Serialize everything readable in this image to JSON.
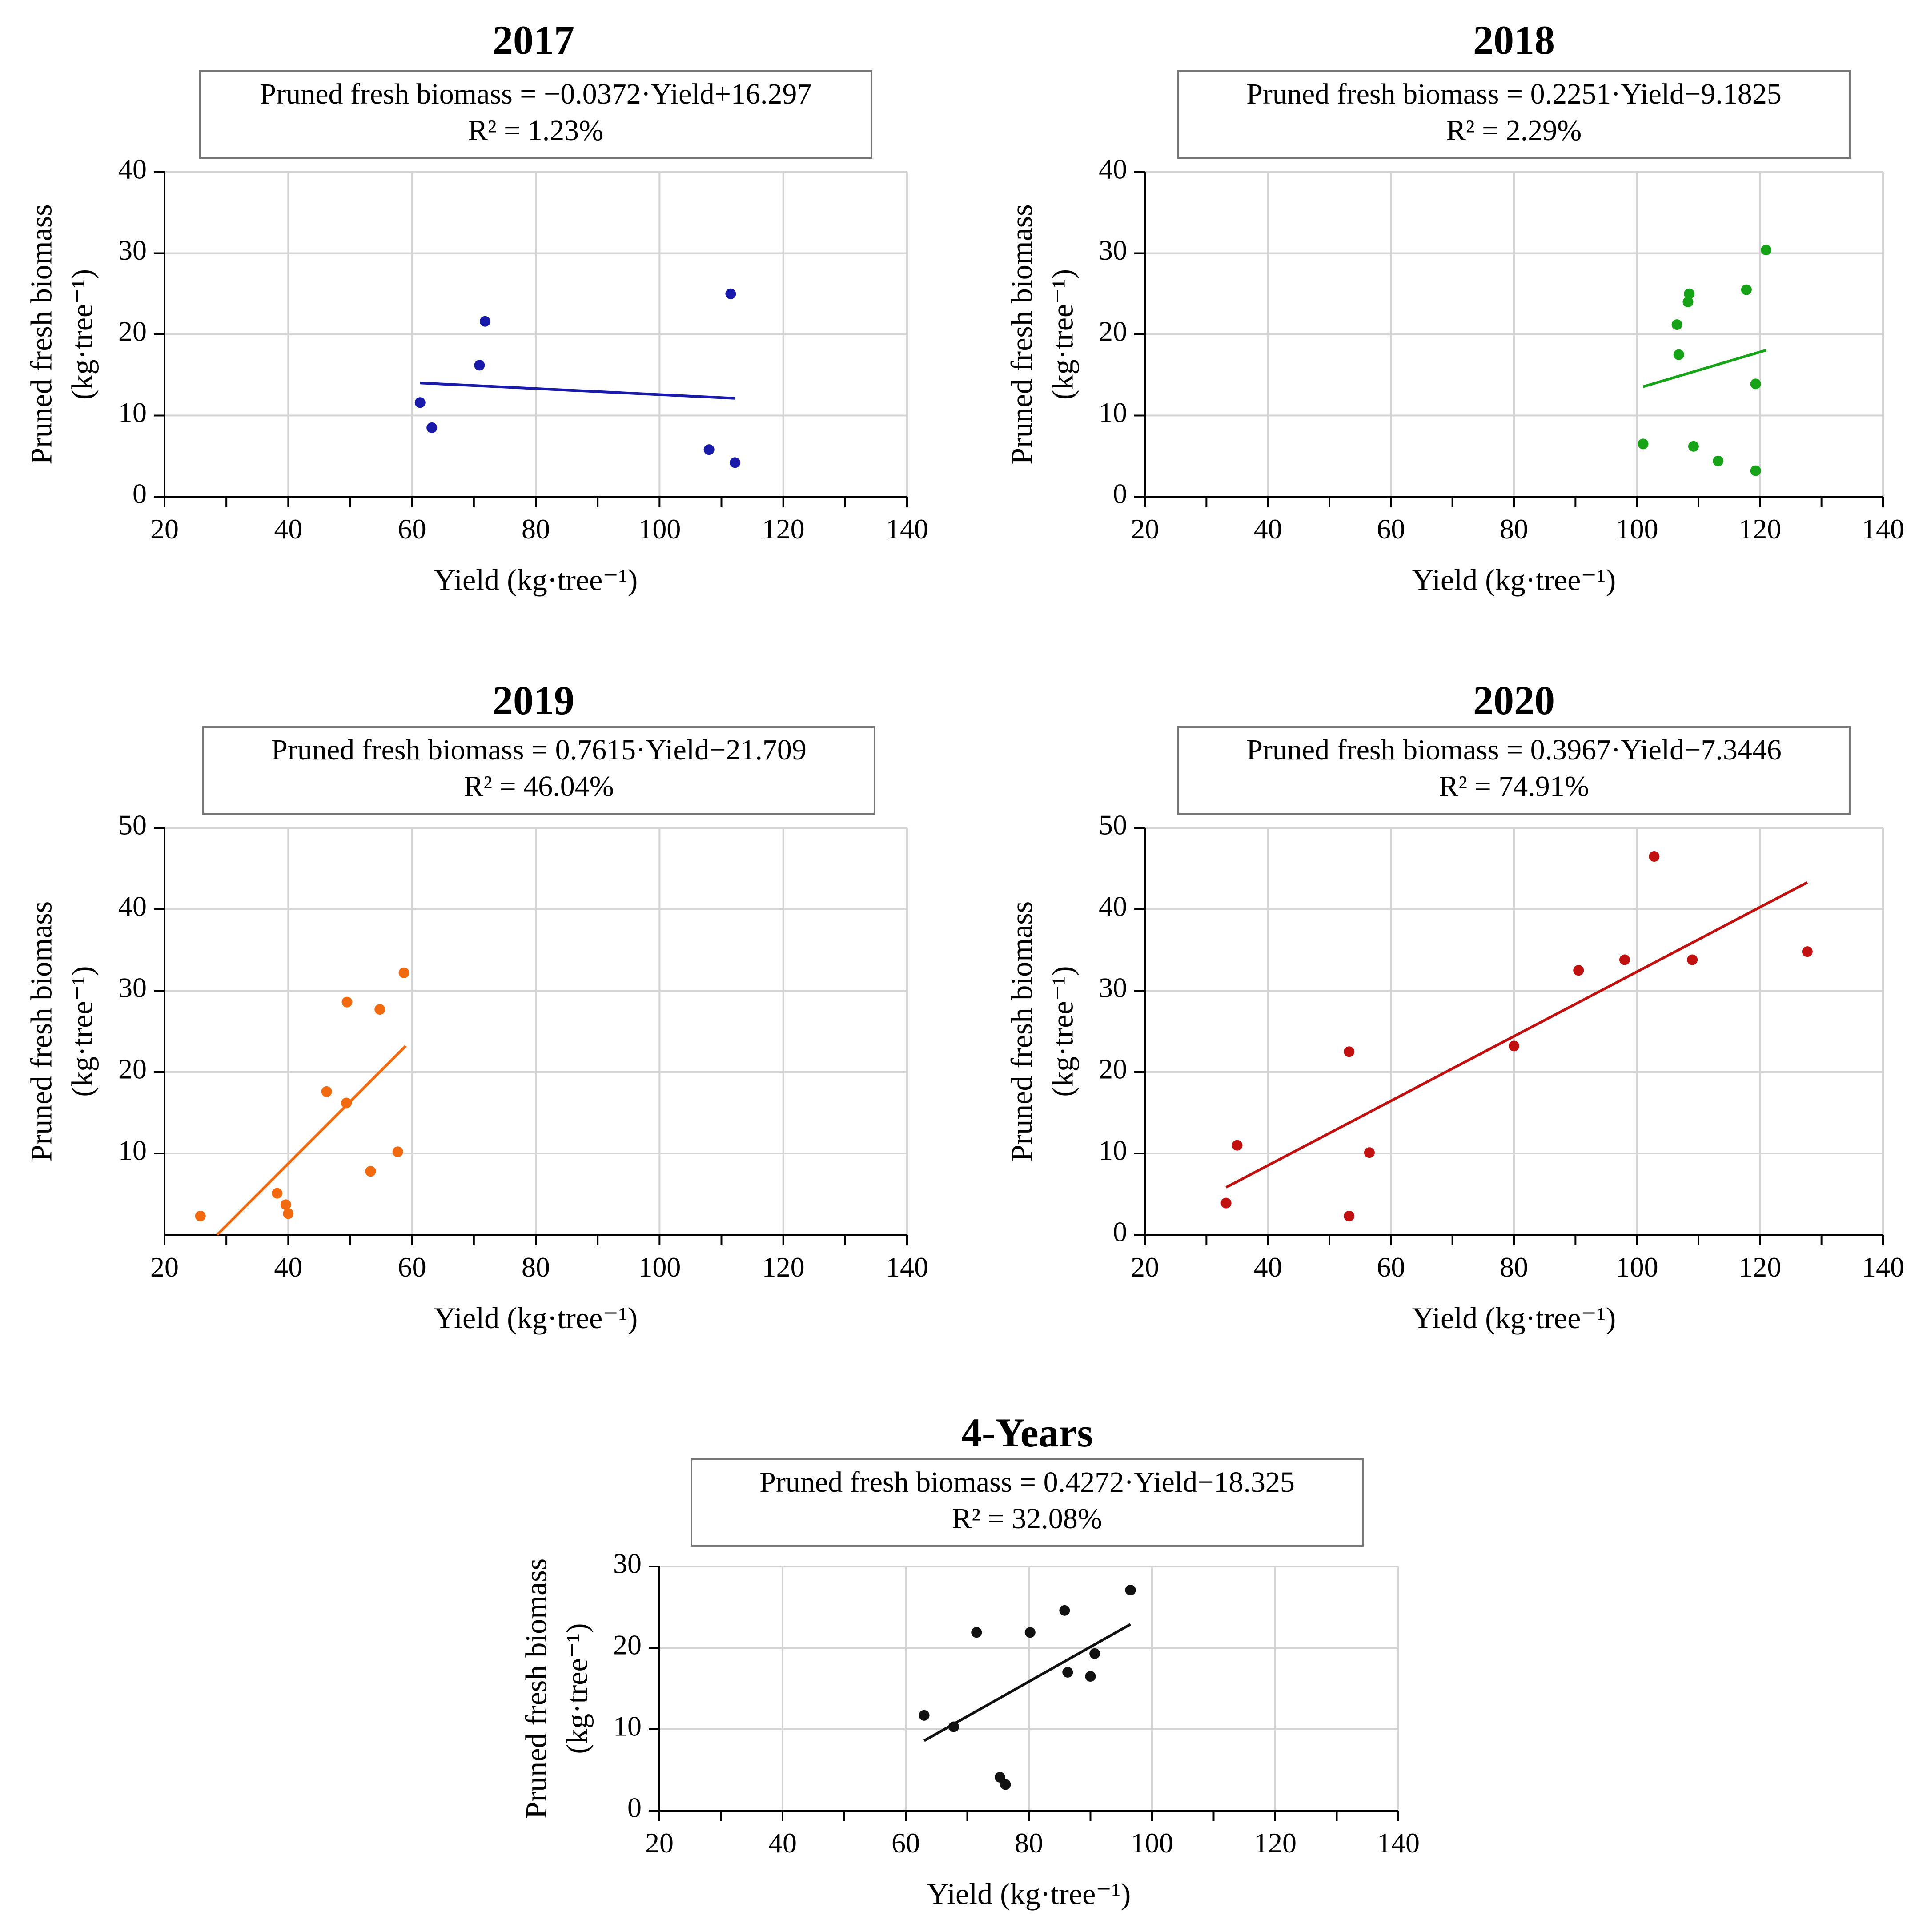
{
  "chart_data": [
    {
      "type": "scatter",
      "title": "2017",
      "equation": "Pruned fresh biomass = −0.0372·Yield+16.297",
      "r_squared": "R² = 1.23%",
      "xlabel": "Yield (kg·tree⁻¹)",
      "ylabel_line1": "Pruned fresh biomass",
      "ylabel_line2": "(kg·tree⁻¹)",
      "xlim": [
        20,
        140
      ],
      "ylim": [
        0,
        40
      ],
      "xticks": [
        20,
        40,
        60,
        80,
        100,
        120,
        140
      ],
      "yticks": [
        0,
        10,
        20,
        30,
        40
      ],
      "color": "#1a1aaa",
      "x": [
        61.3,
        63.2,
        70.9,
        71.8,
        108,
        111.5,
        112.2
      ],
      "y": [
        11.6,
        8.5,
        16.2,
        21.6,
        5.8,
        25,
        4.2
      ],
      "fit": {
        "slope": -0.0372,
        "intercept": 16.297,
        "x_range": [
          61.3,
          112.2
        ]
      }
    },
    {
      "type": "scatter",
      "title": "2018",
      "equation": "Pruned fresh biomass = 0.2251·Yield−9.1825",
      "r_squared": "R² = 2.29%",
      "xlabel": "Yield (kg·tree⁻¹)",
      "ylabel_line1": "Pruned fresh biomass",
      "ylabel_line2": "(kg·tree⁻¹)",
      "xlim": [
        20,
        140
      ],
      "ylim": [
        0,
        40
      ],
      "xticks": [
        20,
        40,
        60,
        80,
        100,
        120,
        140
      ],
      "yticks": [
        0,
        10,
        20,
        30,
        40
      ],
      "color": "#17a317",
      "x": [
        101,
        106.5,
        106.8,
        108.3,
        108.5,
        109.2,
        113.2,
        117.8,
        119.3,
        119.3,
        121
      ],
      "y": [
        6.5,
        21.2,
        17.5,
        24,
        25,
        6.2,
        4.4,
        25.5,
        13.9,
        3.2,
        30.4
      ],
      "fit": {
        "slope": 0.2251,
        "intercept": -9.1825,
        "x_range": [
          101,
          121
        ]
      }
    },
    {
      "type": "scatter",
      "title": "2019",
      "equation": "Pruned fresh biomass = 0.7615·Yield−21.709",
      "r_squared": "R² = 46.04%",
      "xlabel": "Yield (kg·tree⁻¹)",
      "ylabel_line1": "Pruned fresh biomass",
      "ylabel_line2": "(kg·tree⁻¹)",
      "xlim": [
        20,
        140
      ],
      "ylim": [
        0,
        50
      ],
      "xticks": [
        20,
        40,
        60,
        80,
        100,
        120,
        140
      ],
      "yticks": [
        10,
        20,
        30,
        40,
        50
      ],
      "color": "#f26a10",
      "x": [
        25.8,
        38.2,
        39.6,
        40,
        46.2,
        49.4,
        49.5,
        53.3,
        54.8,
        57.7,
        58.7
      ],
      "y": [
        2.3,
        5.1,
        3.7,
        2.6,
        17.6,
        16.2,
        28.6,
        7.8,
        27.7,
        10.2,
        32.2
      ],
      "fit": {
        "slope": 0.7615,
        "intercept": -21.709,
        "x_range": [
          28.5,
          59
        ]
      }
    },
    {
      "type": "scatter",
      "title": "2020",
      "equation": "Pruned fresh biomass = 0.3967·Yield−7.3446",
      "r_squared": "R² = 74.91%",
      "xlabel": "Yield (kg·tree⁻¹)",
      "ylabel_line1": "Pruned fresh biomass",
      "ylabel_line2": "(kg·tree⁻¹)",
      "xlim": [
        20,
        140
      ],
      "ylim": [
        0,
        50
      ],
      "xticks": [
        20,
        40,
        60,
        80,
        100,
        120,
        140
      ],
      "yticks": [
        0,
        10,
        20,
        30,
        40,
        50
      ],
      "color": "#c01010",
      "x": [
        33.2,
        35,
        53.2,
        53.2,
        56.5,
        80,
        90.5,
        98,
        102.8,
        109,
        127.7
      ],
      "y": [
        3.9,
        11,
        22.5,
        2.3,
        10.1,
        23.2,
        32.5,
        33.8,
        46.5,
        33.8,
        34.8
      ],
      "fit": {
        "slope": 0.3967,
        "intercept": -7.3446,
        "x_range": [
          33.2,
          127.7
        ]
      }
    },
    {
      "type": "scatter",
      "title": "4-Years",
      "equation": "Pruned fresh biomass = 0.4272·Yield−18.325",
      "r_squared": "R² = 32.08%",
      "xlabel": "Yield (kg·tree⁻¹)",
      "ylabel_line1": "Pruned fresh biomass",
      "ylabel_line2": "(kg·tree⁻¹)",
      "xlim": [
        20,
        140
      ],
      "ylim": [
        0,
        30
      ],
      "xticks": [
        20,
        40,
        60,
        80,
        100,
        120,
        140
      ],
      "yticks": [
        0,
        10,
        20,
        30
      ],
      "color": "#111111",
      "x": [
        63,
        67.8,
        71.5,
        75.3,
        76.2,
        80.2,
        85.8,
        86.3,
        90,
        90.7,
        96.5
      ],
      "y": [
        11.7,
        10.3,
        21.9,
        4.1,
        3.2,
        21.9,
        24.6,
        17,
        16.5,
        19.3,
        27.1
      ],
      "fit": {
        "slope": 0.4272,
        "intercept": -18.325,
        "x_range": [
          63,
          96.5
        ]
      }
    }
  ]
}
